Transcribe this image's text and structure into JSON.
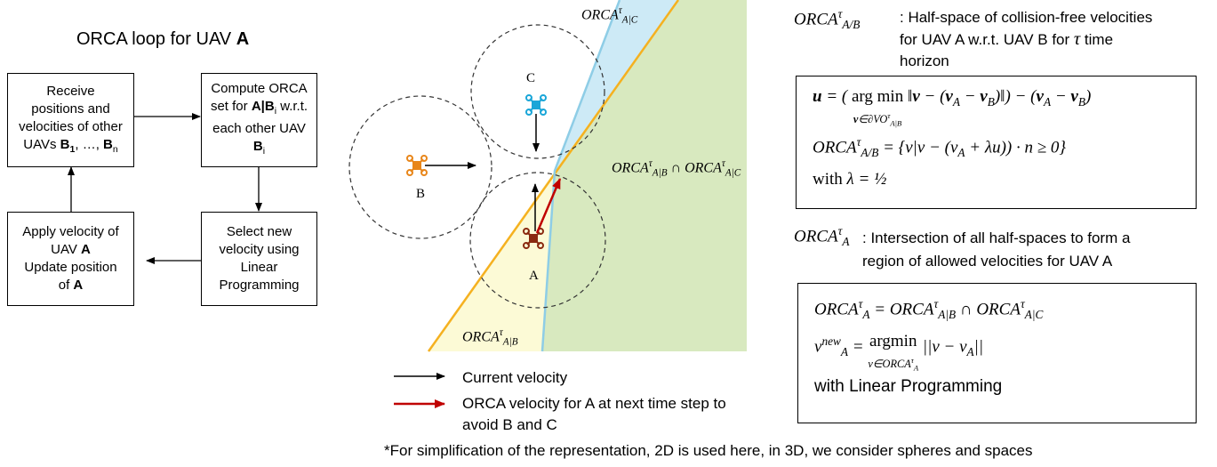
{
  "flowchart": {
    "title": [
      {
        "text": "ORCA loop for UAV "
      },
      {
        "text": "A",
        "style": "bold"
      }
    ],
    "nodes": [
      {
        "lines": [
          [
            {
              "text": "Receive"
            }
          ],
          [
            {
              "text": "positions and"
            }
          ],
          [
            {
              "text": "velocities of other"
            }
          ],
          [
            {
              "text": "UAVs "
            },
            {
              "text": "B",
              "style": "bold"
            },
            {
              "text": "1",
              "style": "bold-sub"
            },
            {
              "text": ", …, "
            },
            {
              "text": "B",
              "style": "bold"
            },
            {
              "text": "n",
              "style": "sub"
            }
          ]
        ]
      },
      {
        "lines": [
          [
            {
              "text": "Compute ORCA"
            }
          ],
          [
            {
              "text": "set for "
            },
            {
              "text": "A|B",
              "style": "bold"
            },
            {
              "text": "i",
              "style": "sub"
            },
            {
              "text": " w.r.t."
            }
          ],
          [
            {
              "text": "each other UAV"
            }
          ],
          [
            {
              "text": "B",
              "style": "bold"
            },
            {
              "text": "i",
              "style": "sub"
            }
          ]
        ]
      },
      {
        "lines": [
          [
            {
              "text": "Select new"
            }
          ],
          [
            {
              "text": "velocity using"
            }
          ],
          [
            {
              "text": "Linear"
            }
          ],
          [
            {
              "text": "Programming"
            }
          ]
        ]
      },
      {
        "lines": [
          [
            {
              "text": "Apply velocity of"
            }
          ],
          [
            {
              "text": "UAV "
            },
            {
              "text": "A",
              "style": "bold"
            }
          ],
          [
            {
              "text": "Update position"
            }
          ],
          [
            {
              "text": "of "
            },
            {
              "text": "A",
              "style": "bold"
            }
          ]
        ]
      }
    ]
  },
  "diagram": {
    "region_labels": [
      [
        [
          {
            "text": "ORCA"
          },
          {
            "text": "τ",
            "style": "sup"
          },
          {
            "text": "A|C",
            "style": "sub"
          }
        ]
      ],
      [
        [
          {
            "text": "ORCA"
          },
          {
            "text": "τ",
            "style": "sup"
          },
          {
            "text": "A|B",
            "style": "sub"
          },
          {
            "text": " ∩ ORCA"
          },
          {
            "text": "τ",
            "style": "sup"
          },
          {
            "text": "A|C",
            "style": "sub"
          }
        ]
      ],
      [
        [
          {
            "text": "ORCA"
          },
          {
            "text": "τ",
            "style": "sup"
          },
          {
            "text": "A|B",
            "style": "sub"
          }
        ]
      ]
    ],
    "uav_labels": [
      [
        [
          {
            "text": "C"
          }
        ]
      ],
      [
        [
          {
            "text": "B"
          }
        ]
      ],
      [
        [
          {
            "text": "A"
          }
        ]
      ]
    ]
  },
  "legend": [
    {
      "lines": [
        [
          {
            "text": "Current velocity"
          }
        ]
      ]
    },
    {
      "lines": [
        [
          {
            "text": "ORCA velocity for A at next time step to"
          }
        ],
        [
          {
            "text": "avoid B and C"
          }
        ]
      ]
    }
  ],
  "definitions": [
    {
      "term": [
        [
          {
            "text": "ORCA"
          },
          {
            "text": "τ",
            "style": "sup"
          },
          {
            "text": "A/B",
            "style": "sub"
          }
        ]
      ],
      "description": [
        [
          {
            "text": ": Half-space of collision-free velocities"
          }
        ],
        [
          {
            "text": "for UAV A w.r.t. UAV B for "
          },
          {
            "text": "τ",
            "style": "serif"
          },
          {
            "text": " time"
          }
        ],
        [
          {
            "text": "horizon"
          }
        ]
      ],
      "formulas": [
        [
          {
            "text": "u",
            "style": "bold"
          },
          {
            "text": " = ( "
          },
          {
            "text": "arg min",
            "style": "op",
            "under": [
              {
                "text": "v",
                "style": "bold"
              },
              {
                "text": "∈∂VO"
              },
              {
                "text": "τ",
                "style": "sup"
              },
              {
                "text": "A|B",
                "style": "sub"
              }
            ]
          },
          {
            "text": " ‖"
          },
          {
            "text": "v",
            "style": "bold"
          },
          {
            "text": " − ("
          },
          {
            "text": "v",
            "style": "bold"
          },
          {
            "text": "A",
            "style": "sub"
          },
          {
            "text": " − "
          },
          {
            "text": "v",
            "style": "bold"
          },
          {
            "text": "B",
            "style": "sub"
          },
          {
            "text": ")‖) − ("
          },
          {
            "text": "v",
            "style": "bold"
          },
          {
            "text": "A",
            "style": "sub"
          },
          {
            "text": " − "
          },
          {
            "text": "v",
            "style": "bold"
          },
          {
            "text": "B",
            "style": "sub"
          },
          {
            "text": ")"
          }
        ],
        [
          {
            "text": "ORCA"
          },
          {
            "text": "τ",
            "style": "sup"
          },
          {
            "text": "A/B",
            "style": "sub"
          },
          {
            "text": " = {v|v − (v"
          },
          {
            "text": "A",
            "style": "sub"
          },
          {
            "text": " + λu)) · n ≥ 0}"
          }
        ],
        [
          {
            "text": "with",
            "style": "upright"
          },
          {
            "text": " λ = ½"
          }
        ]
      ]
    },
    {
      "term": [
        [
          {
            "text": "ORCA"
          },
          {
            "text": "τ",
            "style": "sup"
          },
          {
            "text": "A",
            "style": "sub"
          }
        ]
      ],
      "description": [
        [
          {
            "text": ": Intersection of all half-spaces to form a"
          }
        ],
        [
          {
            "text": "region of allowed velocities for UAV A"
          }
        ]
      ],
      "formulas": [
        [
          {
            "text": "ORCA"
          },
          {
            "text": "τ",
            "style": "sup"
          },
          {
            "text": "A",
            "style": "sub"
          },
          {
            "text": " = ORCA"
          },
          {
            "text": "τ",
            "style": "sup"
          },
          {
            "text": "A|B",
            "style": "sub"
          },
          {
            "text": " ∩ ORCA"
          },
          {
            "text": "τ",
            "style": "sup"
          },
          {
            "text": "A|C",
            "style": "sub"
          }
        ],
        [
          {
            "text": "v"
          },
          {
            "text": "new",
            "style": "sup"
          },
          {
            "text": "A",
            "style": "sub"
          },
          {
            "text": " = "
          },
          {
            "text": "argmin",
            "style": "op",
            "under": [
              {
                "text": "v∈ORCA"
              },
              {
                "text": "τ",
                "style": "sup"
              },
              {
                "text": "A",
                "style": "sub"
              }
            ]
          },
          {
            "text": " ||v − v"
          },
          {
            "text": "A",
            "style": "sub"
          },
          {
            "text": "||"
          }
        ],
        [
          {
            "text": "with Linear Programming",
            "style": "sans"
          }
        ]
      ]
    }
  ],
  "footnote": [
    [
      {
        "text": "*For simplification of the representation, 2D is used here, in 3D, we consider spheres and spaces"
      }
    ]
  ]
}
